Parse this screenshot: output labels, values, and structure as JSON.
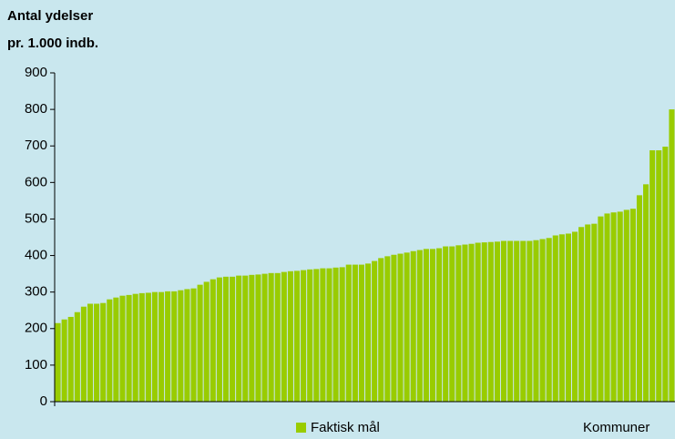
{
  "chart_data": {
    "type": "bar",
    "ylabel_lines": [
      "Antal ydelser",
      "pr. 1.000 indb."
    ],
    "xlabel": "Kommuner",
    "categories": [
      null,
      null,
      null,
      null,
      null,
      null,
      null,
      null,
      null,
      null,
      null,
      null,
      null,
      null,
      null,
      null,
      null,
      null,
      null,
      null,
      null,
      null,
      null,
      null,
      null,
      null,
      null,
      null,
      null,
      null,
      null,
      null,
      null,
      null,
      null,
      null,
      null,
      null,
      null,
      null,
      null,
      null,
      null,
      null,
      null,
      null,
      null,
      null,
      null,
      null,
      null,
      null,
      null,
      null,
      null,
      null,
      null,
      null,
      null,
      null,
      null,
      null,
      null,
      null,
      null,
      null,
      null,
      null,
      null,
      null,
      null,
      null,
      null,
      null,
      null,
      null,
      null,
      null,
      null,
      null,
      null,
      null,
      null,
      null,
      null,
      null,
      null,
      null,
      null,
      null,
      null,
      null,
      null,
      null,
      null,
      null
    ],
    "series": [
      {
        "name": "Faktisk mål",
        "color": "#99cc00",
        "values": [
          215,
          225,
          232,
          245,
          260,
          268,
          268,
          270,
          280,
          285,
          290,
          292,
          295,
          297,
          298,
          300,
          300,
          302,
          302,
          305,
          308,
          310,
          320,
          328,
          335,
          340,
          342,
          342,
          345,
          345,
          347,
          348,
          350,
          352,
          352,
          355,
          357,
          358,
          360,
          362,
          363,
          365,
          365,
          367,
          368,
          375,
          375,
          375,
          378,
          385,
          393,
          398,
          402,
          405,
          408,
          412,
          415,
          418,
          418,
          420,
          425,
          425,
          428,
          430,
          432,
          435,
          436,
          437,
          438,
          440,
          440,
          440,
          440,
          440,
          442,
          445,
          448,
          455,
          458,
          460,
          465,
          478,
          485,
          487,
          507,
          515,
          518,
          520,
          525,
          528,
          565,
          595,
          688,
          688,
          698,
          800
        ]
      }
    ],
    "ylim": [
      0,
      900
    ],
    "yticks": [
      0,
      100,
      200,
      300,
      400,
      500,
      600,
      700,
      800,
      900
    ],
    "grid": false,
    "legend": "bottom"
  }
}
